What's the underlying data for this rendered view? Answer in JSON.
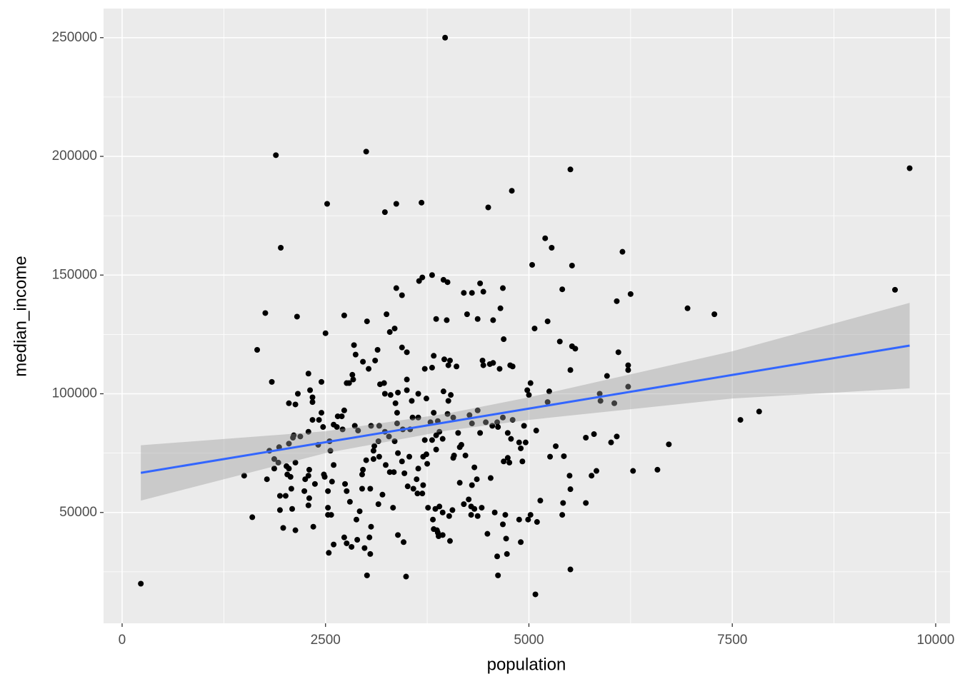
{
  "chart_data": {
    "type": "scatter",
    "x_label": "population",
    "y_label": "median_income",
    "xlim": [
      -228,
      10176
    ],
    "ylim": [
      3308,
      262256
    ],
    "xticks": [
      0,
      2500,
      5000,
      7500,
      10000
    ],
    "yticks": [
      50000,
      100000,
      150000,
      200000,
      250000
    ],
    "x_minor_breaks": [
      1250,
      3750,
      6250,
      8750
    ],
    "y_minor_breaks": [
      25000,
      75000,
      125000,
      175000,
      225000
    ],
    "grid": true,
    "color": "#000000",
    "x": [
      230,
      1890,
      3000,
      3970,
      5510,
      9680,
      9500,
      7280,
      6950,
      7600,
      7830,
      2520,
      3370,
      3680,
      3230,
      4500,
      4790,
      1950,
      1660,
      1760,
      1840,
      1500,
      1600,
      2150,
      5200,
      5280,
      5530,
      5040,
      6150,
      6250,
      6080,
      5410,
      5230,
      5070,
      5380,
      5530,
      5570,
      6100,
      6220,
      6220,
      6220,
      5510,
      5960,
      5870,
      5880,
      6050,
      6010,
      6080,
      5800,
      5700,
      5770,
      5830,
      5700,
      6280,
      6580,
      6720,
      5500,
      5510,
      5410,
      5420,
      5510,
      5080,
      5100,
      5020,
      4990,
      5140,
      5260,
      5330,
      5430,
      5230,
      5250,
      5000,
      5020,
      4980,
      5090,
      4940,
      4960,
      4880,
      4900,
      4780,
      4740,
      4620,
      4610,
      4680,
      4800,
      4800,
      4770,
      4640,
      4690,
      4680,
      4650,
      4560,
      4400,
      4440,
      4300,
      4200,
      4240,
      4370,
      4560,
      4430,
      4440,
      4520,
      4010,
      4030,
      3960,
      4110,
      3830,
      3810,
      3720,
      3860,
      3990,
      3950,
      4000,
      3810,
      3690,
      3650,
      3370,
      3440,
      3350,
      3290,
      3250,
      3010,
      2730,
      2500,
      3440,
      3500,
      3140,
      3110,
      2960,
      2870,
      2850,
      3030,
      2830,
      2840,
      2790,
      2760,
      2290,
      2450,
      2310,
      2160,
      2050,
      2130,
      2340,
      2340,
      2450,
      2420,
      2340,
      2290,
      2470,
      2600,
      2650,
      2700,
      2730,
      2640,
      2710,
      2860,
      2900,
      3060,
      3160,
      3170,
      3220,
      3230,
      3390,
      3300,
      3360,
      3380,
      3500,
      3500,
      3560,
      3640,
      3740,
      3830,
      3880,
      3790,
      3640,
      3570,
      3450,
      3540,
      3380,
      3950,
      4040,
      4010,
      4000,
      4070,
      4130,
      4170,
      4150,
      4270,
      4370,
      4300,
      4470,
      4550,
      4400,
      4220,
      4330,
      4360,
      4300,
      4530,
      4150,
      4080,
      4070,
      4260,
      4200,
      4290,
      4330,
      4420,
      4290,
      4370,
      4490,
      4580,
      4710,
      4680,
      4720,
      4610,
      4730,
      4620,
      4880,
      4900,
      4760,
      4690,
      4740,
      4920,
      3900,
      3940,
      3860,
      3860,
      3810,
      3720,
      3740,
      3700,
      3750,
      3640,
      3620,
      3580,
      3510,
      3470,
      3440,
      3390,
      3350,
      3280,
      3230,
      3150,
      3100,
      3090,
      3000,
      2960,
      3090,
      3160,
      3240,
      3290,
      3340,
      3530,
      3630,
      3690,
      3700,
      3760,
      3850,
      3900,
      3940,
      4020,
      4060,
      3820,
      3870,
      3830,
      3880,
      3890,
      4030,
      3940,
      3330,
      3390,
      3460,
      3490,
      3010,
      3050,
      2980,
      3040,
      2890,
      2880,
      2920,
      2800,
      2760,
      2740,
      2580,
      2600,
      2490,
      2530,
      2530,
      2530,
      2570,
      2540,
      2600,
      2730,
      2760,
      2820,
      2300,
      2290,
      2250,
      2300,
      2240,
      2290,
      2370,
      2350,
      2480,
      2560,
      2550,
      2410,
      2190,
      2110,
      2100,
      2050,
      1930,
      1810,
      1870,
      1780,
      1870,
      1920,
      2020,
      2050,
      2030,
      2070,
      2080,
      2130,
      1940,
      1940,
      2010,
      2090,
      2130,
      1980,
      2950,
      3050,
      2950,
      3060,
      3150,
      3200
    ],
    "values": [
      20000,
      200500,
      202000,
      250000,
      194500,
      195000,
      143800,
      133500,
      136000,
      89000,
      92500,
      180000,
      180000,
      180500,
      176500,
      178500,
      185500,
      161500,
      118500,
      134000,
      105000,
      65500,
      48000,
      132500,
      165500,
      161500,
      154000,
      154300,
      159800,
      142000,
      139000,
      144000,
      130500,
      127500,
      122000,
      120000,
      119000,
      117500,
      112000,
      110000,
      103000,
      110000,
      107500,
      100000,
      97000,
      96000,
      79500,
      82000,
      83000,
      81500,
      65500,
      67500,
      54000,
      67500,
      68000,
      78700,
      65500,
      59800,
      49000,
      54000,
      26000,
      15500,
      46000,
      49000,
      47000,
      55000,
      73500,
      77900,
      73700,
      96500,
      101000,
      99500,
      104500,
      101500,
      84500,
      86500,
      79500,
      79500,
      77000,
      81000,
      83500,
      86000,
      88000,
      90000,
      89000,
      111500,
      112000,
      110500,
      123000,
      144500,
      136000,
      131000,
      146500,
      143000,
      142500,
      142500,
      133500,
      131500,
      113000,
      114000,
      112000,
      112500,
      112000,
      114000,
      114500,
      111500,
      116000,
      111000,
      110500,
      131500,
      131000,
      148000,
      147000,
      150000,
      149000,
      147500,
      144500,
      141500,
      127500,
      126000,
      133500,
      130500,
      133000,
      125500,
      119500,
      117500,
      118500,
      114000,
      113500,
      116500,
      120500,
      110500,
      108000,
      106000,
      104500,
      104500,
      108500,
      105000,
      101500,
      100000,
      96000,
      95500,
      98500,
      96500,
      92000,
      89000,
      89000,
      84000,
      86000,
      87000,
      90500,
      90500,
      93000,
      86000,
      85000,
      86500,
      84500,
      86500,
      86500,
      104000,
      104500,
      100000,
      100500,
      99500,
      96000,
      92000,
      106000,
      101500,
      97000,
      100000,
      98000,
      92000,
      88500,
      88000,
      90000,
      90000,
      85000,
      85000,
      87500,
      101000,
      99500,
      97000,
      91500,
      90000,
      83500,
      78500,
      77500,
      91000,
      93000,
      87500,
      88000,
      86500,
      83500,
      74000,
      69000,
      64000,
      61500,
      64500,
      62500,
      74000,
      73000,
      55500,
      53500,
      52500,
      51500,
      52000,
      49000,
      48500,
      41000,
      50000,
      49000,
      45000,
      39000,
      31500,
      32500,
      23500,
      47000,
      37500,
      71000,
      71500,
      73000,
      71500,
      84000,
      81000,
      76500,
      82500,
      80500,
      80500,
      74500,
      73500,
      70500,
      68500,
      64000,
      60000,
      61000,
      66500,
      71500,
      75000,
      80000,
      82000,
      84000,
      80000,
      78000,
      76000,
      72000,
      68000,
      72500,
      73500,
      70000,
      67000,
      67000,
      73500,
      58000,
      58000,
      61500,
      52000,
      51500,
      52500,
      50000,
      48500,
      51000,
      47000,
      42500,
      43000,
      41500,
      40000,
      38000,
      40500,
      52000,
      40500,
      37500,
      23000,
      23500,
      32500,
      35000,
      39500,
      38500,
      47000,
      50500,
      54500,
      59000,
      62000,
      63000,
      70000,
      65000,
      59000,
      52000,
      49000,
      49000,
      33000,
      36500,
      39500,
      37000,
      35500,
      68000,
      65500,
      64000,
      56000,
      59000,
      53000,
      62000,
      44000,
      66000,
      76000,
      80000,
      78500,
      82000,
      82500,
      81500,
      79000,
      77500,
      76000,
      72500,
      64000,
      68500,
      71000,
      69500,
      68500,
      66000,
      65000,
      60000,
      71000,
      57000,
      51000,
      57000,
      51500,
      42500,
      43500,
      60000,
      60000,
      66000,
      44000,
      53500,
      57500
    ],
    "smooth": {
      "color": "#3366ff",
      "band_color": "#999999",
      "x": [
        230,
        2500,
        4000,
        5000,
        7500,
        9680
      ],
      "values": [
        66700,
        79575,
        88080,
        93755,
        107935,
        120300
      ],
      "lower": [
        55000,
        75000,
        84500,
        89000,
        98000,
        102300
      ],
      "upper": [
        78300,
        84200,
        91700,
        98500,
        117900,
        138300
      ]
    }
  }
}
